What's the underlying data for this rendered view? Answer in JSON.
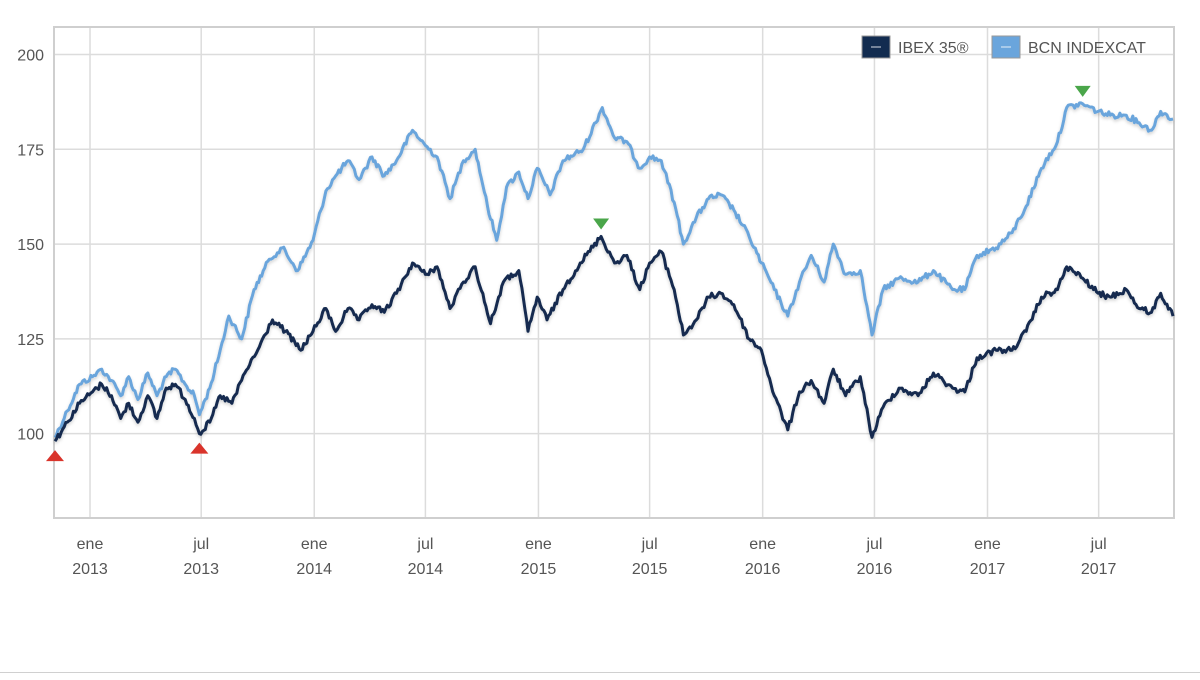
{
  "chart_data": {
    "type": "line",
    "title": "",
    "xlabel": "",
    "ylabel": "",
    "ylim": [
      78,
      207
    ],
    "xlim": [
      "2012-11-05",
      "2017-10-30"
    ],
    "y_ticks": [
      100,
      125,
      150,
      175,
      200
    ],
    "x_ticks": [
      {
        "date": "2013-01-01",
        "line1": "ene",
        "line2": "2013"
      },
      {
        "date": "2013-07-01",
        "line1": "jul",
        "line2": "2013"
      },
      {
        "date": "2014-01-01",
        "line1": "ene",
        "line2": "2014"
      },
      {
        "date": "2014-07-01",
        "line1": "jul",
        "line2": "2014"
      },
      {
        "date": "2015-01-01",
        "line1": "ene",
        "line2": "2015"
      },
      {
        "date": "2015-07-01",
        "line1": "jul",
        "line2": "2015"
      },
      {
        "date": "2016-01-01",
        "line1": "ene",
        "line2": "2016"
      },
      {
        "date": "2016-07-01",
        "line1": "jul",
        "line2": "2016"
      },
      {
        "date": "2017-01-01",
        "line1": "ene",
        "line2": "2017"
      },
      {
        "date": "2017-07-01",
        "line1": "jul",
        "line2": "2017"
      }
    ],
    "grid": true,
    "legend_position": "top-right",
    "series": [
      {
        "name": "IBEX 35®",
        "color": "#122c50",
        "points": [
          [
            "2012-11-05",
            98
          ],
          [
            "2012-11-25",
            103
          ],
          [
            "2012-12-15",
            108
          ],
          [
            "2013-01-05",
            111
          ],
          [
            "2013-01-20",
            113
          ],
          [
            "2013-02-05",
            110
          ],
          [
            "2013-02-20",
            104
          ],
          [
            "2013-03-05",
            108
          ],
          [
            "2013-03-20",
            103
          ],
          [
            "2013-04-05",
            110
          ],
          [
            "2013-04-20",
            104
          ],
          [
            "2013-05-05",
            112
          ],
          [
            "2013-05-20",
            113
          ],
          [
            "2013-06-05",
            109
          ],
          [
            "2013-06-20",
            104
          ],
          [
            "2013-06-28",
            100
          ],
          [
            "2013-07-15",
            103
          ],
          [
            "2013-08-01",
            110
          ],
          [
            "2013-08-20",
            108
          ],
          [
            "2013-09-10",
            116
          ],
          [
            "2013-10-01",
            122
          ],
          [
            "2013-10-25",
            130
          ],
          [
            "2013-11-15",
            127
          ],
          [
            "2013-12-10",
            122
          ],
          [
            "2013-12-30",
            127
          ],
          [
            "2014-01-20",
            133
          ],
          [
            "2014-02-05",
            127
          ],
          [
            "2014-02-25",
            133
          ],
          [
            "2014-03-15",
            130
          ],
          [
            "2014-04-05",
            134
          ],
          [
            "2014-04-25",
            132
          ],
          [
            "2014-05-15",
            137
          ],
          [
            "2014-06-10",
            145
          ],
          [
            "2014-07-01",
            142
          ],
          [
            "2014-07-20",
            144
          ],
          [
            "2014-08-10",
            133
          ],
          [
            "2014-09-01",
            140
          ],
          [
            "2014-09-20",
            144
          ],
          [
            "2014-10-15",
            129
          ],
          [
            "2014-11-05",
            140
          ],
          [
            "2014-11-30",
            143
          ],
          [
            "2014-12-15",
            127
          ],
          [
            "2014-12-30",
            136
          ],
          [
            "2015-01-15",
            130
          ],
          [
            "2015-02-10",
            138
          ],
          [
            "2015-03-10",
            145
          ],
          [
            "2015-04-13",
            152
          ],
          [
            "2015-05-05",
            145
          ],
          [
            "2015-05-25",
            147
          ],
          [
            "2015-06-15",
            138
          ],
          [
            "2015-07-01",
            145
          ],
          [
            "2015-07-20",
            148
          ],
          [
            "2015-08-10",
            138
          ],
          [
            "2015-08-25",
            126
          ],
          [
            "2015-09-15",
            130
          ],
          [
            "2015-10-05",
            136
          ],
          [
            "2015-10-25",
            137
          ],
          [
            "2015-11-15",
            134
          ],
          [
            "2015-12-10",
            125
          ],
          [
            "2015-12-30",
            122
          ],
          [
            "2016-01-20",
            110
          ],
          [
            "2016-02-11",
            101
          ],
          [
            "2016-03-01",
            111
          ],
          [
            "2016-03-20",
            114
          ],
          [
            "2016-04-10",
            108
          ],
          [
            "2016-04-25",
            117
          ],
          [
            "2016-05-15",
            110
          ],
          [
            "2016-06-08",
            115
          ],
          [
            "2016-06-27",
            99
          ],
          [
            "2016-07-15",
            107
          ],
          [
            "2016-08-10",
            112
          ],
          [
            "2016-09-10",
            110
          ],
          [
            "2016-10-05",
            116
          ],
          [
            "2016-11-05",
            112
          ],
          [
            "2016-11-25",
            111
          ],
          [
            "2016-12-15",
            120
          ],
          [
            "2017-01-15",
            122
          ],
          [
            "2017-02-10",
            122
          ],
          [
            "2017-03-05",
            127
          ],
          [
            "2017-03-30",
            136
          ],
          [
            "2017-04-25",
            138
          ],
          [
            "2017-05-10",
            144
          ],
          [
            "2017-06-05",
            141
          ],
          [
            "2017-06-30",
            137
          ],
          [
            "2017-07-20",
            136
          ],
          [
            "2017-08-15",
            138
          ],
          [
            "2017-09-05",
            133
          ],
          [
            "2017-09-25",
            132
          ],
          [
            "2017-10-10",
            137
          ],
          [
            "2017-10-30",
            131
          ]
        ]
      },
      {
        "name": "BCN INDEXCAT",
        "color": "#6aa5dc",
        "points": [
          [
            "2012-11-05",
            99
          ],
          [
            "2012-11-25",
            106
          ],
          [
            "2012-12-15",
            113
          ],
          [
            "2013-01-05",
            115
          ],
          [
            "2013-01-20",
            117
          ],
          [
            "2013-02-05",
            114
          ],
          [
            "2013-02-20",
            110
          ],
          [
            "2013-03-05",
            115
          ],
          [
            "2013-03-20",
            109
          ],
          [
            "2013-04-05",
            116
          ],
          [
            "2013-04-20",
            110
          ],
          [
            "2013-05-05",
            115
          ],
          [
            "2013-05-20",
            117
          ],
          [
            "2013-06-05",
            113
          ],
          [
            "2013-06-20",
            110
          ],
          [
            "2013-06-28",
            105
          ],
          [
            "2013-07-15",
            112
          ],
          [
            "2013-08-01",
            122
          ],
          [
            "2013-08-15",
            131
          ],
          [
            "2013-09-05",
            125
          ],
          [
            "2013-09-25",
            138
          ],
          [
            "2013-10-20",
            146
          ],
          [
            "2013-11-10",
            149
          ],
          [
            "2013-12-05",
            143
          ],
          [
            "2013-12-30",
            151
          ],
          [
            "2014-01-20",
            164
          ],
          [
            "2014-02-05",
            168
          ],
          [
            "2014-02-25",
            172
          ],
          [
            "2014-03-15",
            167
          ],
          [
            "2014-04-05",
            173
          ],
          [
            "2014-04-25",
            168
          ],
          [
            "2014-05-15",
            172
          ],
          [
            "2014-06-10",
            180
          ],
          [
            "2014-07-01",
            176
          ],
          [
            "2014-07-20",
            173
          ],
          [
            "2014-08-10",
            162
          ],
          [
            "2014-09-01",
            172
          ],
          [
            "2014-09-20",
            175
          ],
          [
            "2014-10-10",
            160
          ],
          [
            "2014-10-25",
            151
          ],
          [
            "2014-11-10",
            165
          ],
          [
            "2014-11-30",
            169
          ],
          [
            "2014-12-15",
            162
          ],
          [
            "2014-12-30",
            170
          ],
          [
            "2015-01-20",
            163
          ],
          [
            "2015-02-10",
            172
          ],
          [
            "2015-03-15",
            175
          ],
          [
            "2015-04-15",
            186
          ],
          [
            "2015-05-05",
            178
          ],
          [
            "2015-05-25",
            177
          ],
          [
            "2015-06-15",
            170
          ],
          [
            "2015-07-01",
            173
          ],
          [
            "2015-07-20",
            172
          ],
          [
            "2015-08-10",
            161
          ],
          [
            "2015-08-25",
            150
          ],
          [
            "2015-09-15",
            157
          ],
          [
            "2015-10-05",
            162
          ],
          [
            "2015-10-25",
            163
          ],
          [
            "2015-11-15",
            159
          ],
          [
            "2015-12-10",
            152
          ],
          [
            "2015-12-30",
            145
          ],
          [
            "2016-01-20",
            138
          ],
          [
            "2016-02-11",
            131
          ],
          [
            "2016-03-01",
            140
          ],
          [
            "2016-03-20",
            147
          ],
          [
            "2016-04-10",
            140
          ],
          [
            "2016-04-25",
            150
          ],
          [
            "2016-05-15",
            142
          ],
          [
            "2016-06-08",
            143
          ],
          [
            "2016-06-27",
            126
          ],
          [
            "2016-07-15",
            138
          ],
          [
            "2016-08-10",
            141
          ],
          [
            "2016-09-10",
            140
          ],
          [
            "2016-10-05",
            143
          ],
          [
            "2016-11-05",
            138
          ],
          [
            "2016-11-25",
            138
          ],
          [
            "2016-12-15",
            147
          ],
          [
            "2017-01-15",
            149
          ],
          [
            "2017-02-10",
            153
          ],
          [
            "2017-03-05",
            160
          ],
          [
            "2017-03-30",
            170
          ],
          [
            "2017-04-25",
            177
          ],
          [
            "2017-05-10",
            186
          ],
          [
            "2017-06-05",
            187
          ],
          [
            "2017-06-30",
            185
          ],
          [
            "2017-07-20",
            184
          ],
          [
            "2017-08-15",
            184
          ],
          [
            "2017-09-05",
            182
          ],
          [
            "2017-09-25",
            180
          ],
          [
            "2017-10-10",
            185
          ],
          [
            "2017-10-30",
            183
          ]
        ]
      }
    ],
    "markers": [
      {
        "type": "min",
        "series": "IBEX 35®",
        "date": "2012-11-05",
        "value": 98,
        "color": "#d9342b"
      },
      {
        "type": "min",
        "series": "IBEX 35®",
        "date": "2013-06-28",
        "value": 100,
        "color": "#d9342b"
      },
      {
        "type": "max",
        "series": "IBEX 35®",
        "date": "2015-04-13",
        "value": 152,
        "color": "#4aa64a"
      },
      {
        "type": "max",
        "series": "BCN INDEXCAT",
        "date": "2017-06-05",
        "value": 187,
        "color": "#4aa64a"
      }
    ]
  }
}
